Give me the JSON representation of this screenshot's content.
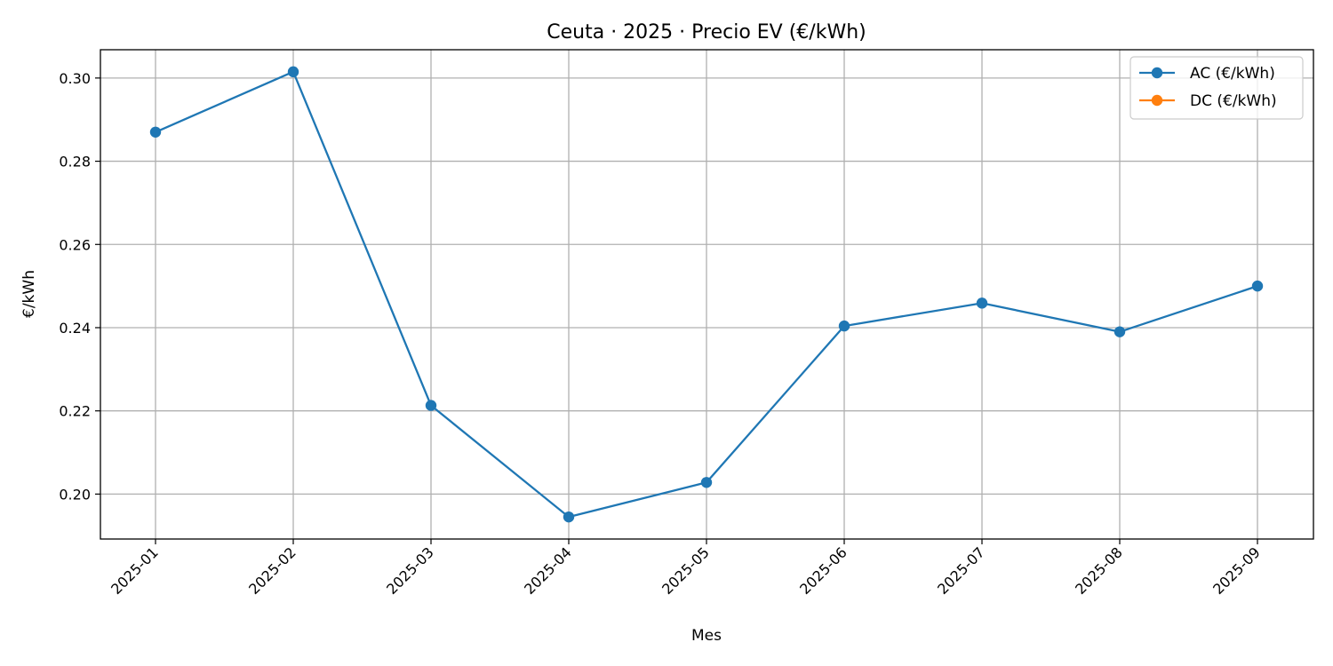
{
  "chart_data": {
    "type": "line",
    "title": "Ceuta · 2025 · Precio EV (€/kWh)",
    "xlabel": "Mes",
    "ylabel": "€/kWh",
    "categories": [
      "2025-01",
      "2025-02",
      "2025-03",
      "2025-04",
      "2025-05",
      "2025-06",
      "2025-07",
      "2025-08",
      "2025-09"
    ],
    "ylim": [
      0.1892,
      0.3068
    ],
    "yticks": [
      0.2,
      0.22,
      0.24,
      0.26,
      0.28,
      0.3
    ],
    "ytick_labels": [
      "0.20",
      "0.22",
      "0.24",
      "0.26",
      "0.28",
      "0.30"
    ],
    "grid": true,
    "legend_position": "top-right",
    "series": [
      {
        "name": "AC (€/kWh)",
        "color": "#1f77b4",
        "marker": "circle",
        "values": [
          0.287,
          0.3015,
          0.2213,
          0.1945,
          0.2028,
          0.2404,
          0.2459,
          0.239,
          0.25
        ]
      },
      {
        "name": "DC (€/kWh)",
        "color": "#ff7f0e",
        "marker": "circle",
        "values": [
          null,
          null,
          null,
          null,
          null,
          null,
          null,
          null,
          null
        ]
      }
    ]
  }
}
